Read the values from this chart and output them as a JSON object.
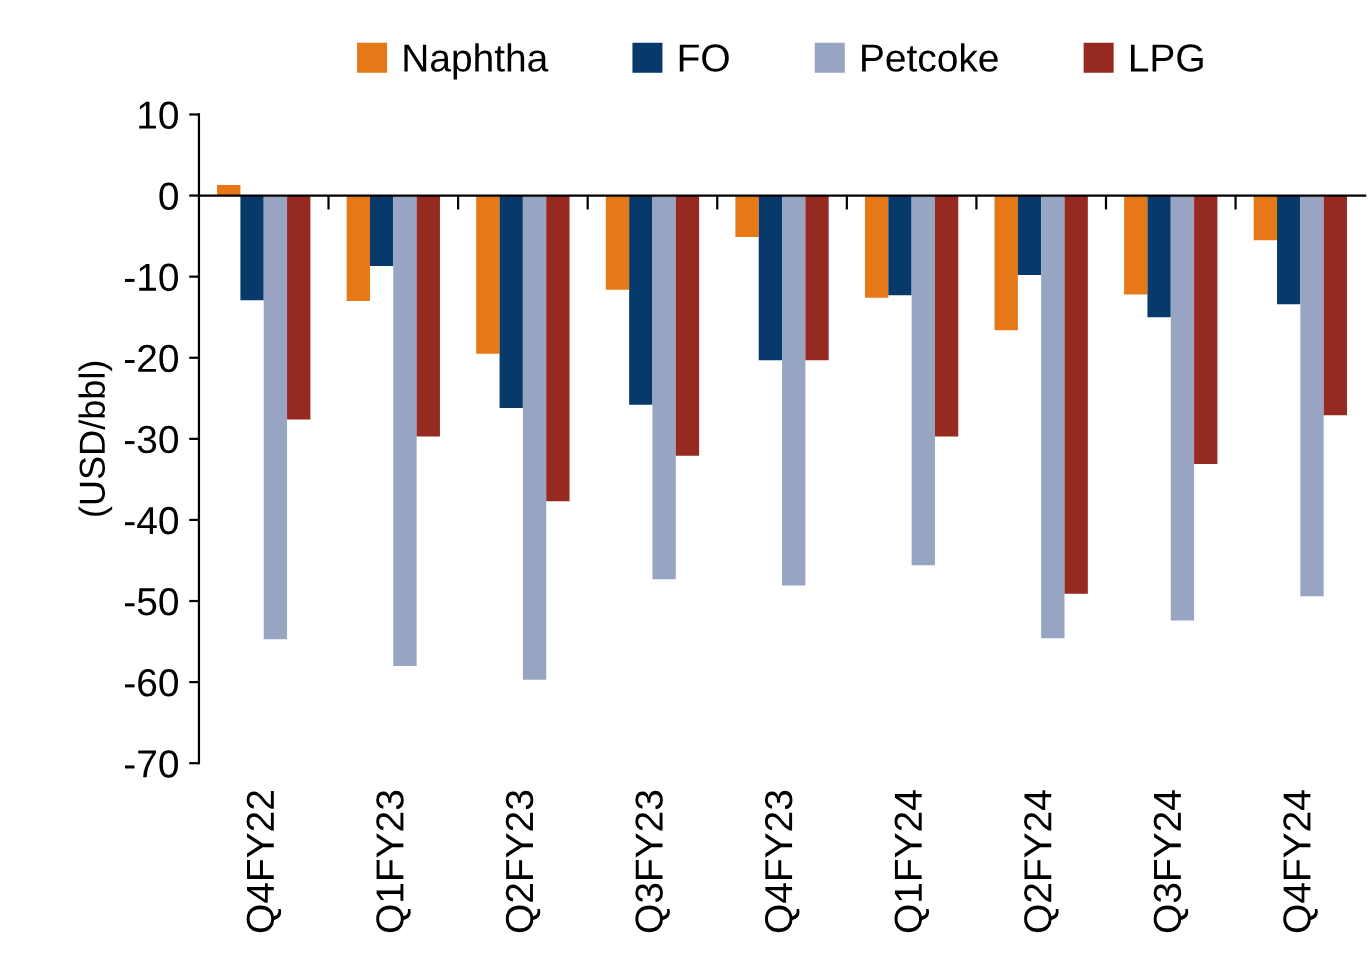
{
  "chart_data": {
    "type": "bar",
    "ylabel": "(USD/bbl)",
    "categories": [
      "Q4FY22",
      "Q1FY23",
      "Q2FY23",
      "Q3FY23",
      "Q4FY23",
      "Q1FY24",
      "Q2FY24",
      "Q3FY24",
      "Q4FY24"
    ],
    "series": [
      {
        "name": "Naphtha",
        "color": "#e67817",
        "values": [
          1.3,
          -13.0,
          -19.5,
          -11.6,
          -5.1,
          -12.6,
          -16.6,
          -12.2,
          -5.5
        ]
      },
      {
        "name": "FO",
        "color": "#073a6b",
        "values": [
          -12.9,
          -8.7,
          -26.2,
          -25.8,
          -20.3,
          -12.3,
          -9.8,
          -15.0,
          -13.4
        ]
      },
      {
        "name": "Petcoke",
        "color": "#97a5c2",
        "values": [
          -54.7,
          -58.0,
          -59.7,
          -47.3,
          -48.1,
          -45.6,
          -54.6,
          -52.4,
          -49.4
        ]
      },
      {
        "name": "LPG",
        "color": "#962920",
        "values": [
          -27.6,
          -29.7,
          -37.7,
          -32.1,
          -20.3,
          -29.7,
          -49.1,
          -33.1,
          -27.1
        ]
      }
    ],
    "ylim": [
      -70,
      10
    ],
    "yticks": [
      -70,
      -60,
      -50,
      -40,
      -30,
      -20,
      -10,
      0,
      10
    ],
    "legend": "top"
  }
}
